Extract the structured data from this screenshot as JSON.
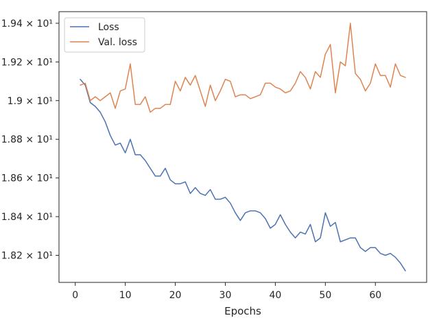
{
  "chart_data": {
    "type": "line",
    "title": "",
    "xlabel": "Epochs",
    "ylabel": "",
    "xlim": [
      -3.25,
      70.25
    ],
    "ylim": [
      18.06,
      19.46
    ],
    "grid": false,
    "legend_position": "top-left",
    "x_ticks": [
      {
        "value": 0,
        "label": "0"
      },
      {
        "value": 10,
        "label": "10"
      },
      {
        "value": 20,
        "label": "20"
      },
      {
        "value": 30,
        "label": "30"
      },
      {
        "value": 40,
        "label": "40"
      },
      {
        "value": 50,
        "label": "50"
      },
      {
        "value": 60,
        "label": "60"
      }
    ],
    "y_ticks": [
      {
        "value": 18.2,
        "label": "1.82 × 10¹"
      },
      {
        "value": 18.4,
        "label": "1.84 × 10¹"
      },
      {
        "value": 18.6,
        "label": "1.86 × 10¹"
      },
      {
        "value": 18.8,
        "label": "1.88 × 10¹"
      },
      {
        "value": 19.0,
        "label": "1.9 × 10¹"
      },
      {
        "value": 19.2,
        "label": "1.92 × 10¹"
      },
      {
        "value": 19.4,
        "label": "1.94 × 10¹"
      }
    ],
    "x": [
      1,
      2,
      3,
      4,
      5,
      6,
      7,
      8,
      9,
      10,
      11,
      12,
      13,
      14,
      15,
      16,
      17,
      18,
      19,
      20,
      21,
      22,
      23,
      24,
      25,
      26,
      27,
      28,
      29,
      30,
      31,
      32,
      33,
      34,
      35,
      36,
      37,
      38,
      39,
      40,
      41,
      42,
      43,
      44,
      45,
      46,
      47,
      48,
      49,
      50,
      51,
      52,
      53,
      54,
      55,
      56,
      57,
      58,
      59,
      60,
      61,
      62,
      63,
      64,
      65,
      66
    ],
    "series": [
      {
        "name": "Loss",
        "color": "#4c72b0",
        "values": [
          19.11,
          19.08,
          18.99,
          18.97,
          18.94,
          18.89,
          18.82,
          18.77,
          18.78,
          18.73,
          18.8,
          18.72,
          18.72,
          18.69,
          18.65,
          18.61,
          18.61,
          18.65,
          18.59,
          18.57,
          18.57,
          18.58,
          18.52,
          18.55,
          18.52,
          18.51,
          18.54,
          18.49,
          18.49,
          18.5,
          18.47,
          18.42,
          18.38,
          18.42,
          18.43,
          18.43,
          18.42,
          18.39,
          18.34,
          18.36,
          18.41,
          18.36,
          18.32,
          18.29,
          18.32,
          18.31,
          18.36,
          18.27,
          18.29,
          18.42,
          18.35,
          18.37,
          18.27,
          18.28,
          18.29,
          18.29,
          18.24,
          18.22,
          18.24,
          18.24,
          18.21,
          18.2,
          18.21,
          18.19,
          18.16,
          18.12
        ]
      },
      {
        "name": "Val. loss",
        "color": "#dd8452",
        "values": [
          19.08,
          19.09,
          19.0,
          19.02,
          19.0,
          19.02,
          19.04,
          18.96,
          19.05,
          19.06,
          19.19,
          18.98,
          18.98,
          19.02,
          18.94,
          18.96,
          18.96,
          18.98,
          18.98,
          19.1,
          19.05,
          19.12,
          19.08,
          19.13,
          19.05,
          18.97,
          19.08,
          19.0,
          19.05,
          19.11,
          19.1,
          19.02,
          19.03,
          19.03,
          19.01,
          19.02,
          19.03,
          19.09,
          19.09,
          19.07,
          19.06,
          19.04,
          19.05,
          19.09,
          19.15,
          19.12,
          19.06,
          19.15,
          19.12,
          19.24,
          19.29,
          19.04,
          19.2,
          19.18,
          19.4,
          19.14,
          19.11,
          19.05,
          19.09,
          19.19,
          19.13,
          19.13,
          19.07,
          19.19,
          19.13,
          19.12
        ]
      }
    ]
  }
}
